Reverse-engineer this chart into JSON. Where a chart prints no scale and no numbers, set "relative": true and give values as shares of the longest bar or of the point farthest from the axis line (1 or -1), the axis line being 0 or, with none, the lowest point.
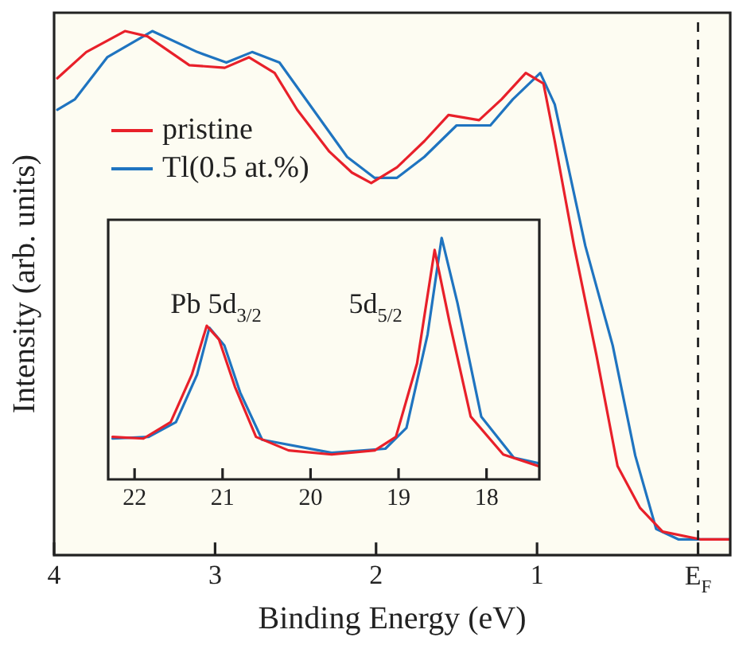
{
  "chart_data": [
    {
      "type": "line",
      "xlabel": "Binding Energy (eV)",
      "ylabel": "Intensity (arb. units)",
      "relative": true,
      "xlim": [
        4,
        -0.2
      ],
      "xticks": [
        4,
        3,
        2,
        1,
        {
          "value": 0,
          "label": "E$_{F}$"
        }
      ],
      "legend": "top left",
      "line_style": "solid",
      "marker": "none",
      "ref_lines": [
        {
          "axis": "x",
          "value": 0,
          "label": null,
          "line_style": "dashed",
          "color": "#222222"
        }
      ],
      "series": [
        {
          "name": "pristine",
          "color": "#e8202a",
          "x": [
            3.98,
            3.8,
            3.56,
            3.42,
            3.16,
            2.94,
            2.79,
            2.63,
            2.49,
            2.29,
            2.15,
            2.03,
            1.87,
            1.7,
            1.55,
            1.36,
            1.22,
            1.07,
            0.96,
            0.89,
            0.77,
            0.63,
            0.5,
            0.36,
            0.22,
            -0.02,
            -0.2
          ],
          "values": [
            0.91,
            0.96,
            1.0,
            0.99,
            0.935,
            0.93,
            0.95,
            0.92,
            0.85,
            0.77,
            0.73,
            0.71,
            0.74,
            0.79,
            0.84,
            0.83,
            0.87,
            0.92,
            0.9,
            0.79,
            0.59,
            0.38,
            0.17,
            0.09,
            0.045,
            0.03,
            0.03
          ]
        },
        {
          "name": "Tl(0.5 at.%)",
          "color": "#1f74c0",
          "x": [
            3.98,
            3.87,
            3.67,
            3.39,
            3.11,
            2.93,
            2.77,
            2.6,
            2.39,
            2.18,
            2.01,
            1.87,
            1.7,
            1.5,
            1.29,
            1.15,
            0.98,
            0.89,
            0.7,
            0.53,
            0.39,
            0.26,
            0.12,
            -0.02,
            -0.2
          ],
          "values": [
            0.85,
            0.87,
            0.95,
            1.0,
            0.96,
            0.94,
            0.96,
            0.94,
            0.85,
            0.76,
            0.72,
            0.72,
            0.76,
            0.82,
            0.82,
            0.87,
            0.92,
            0.86,
            0.59,
            0.4,
            0.19,
            0.05,
            0.03,
            0.03,
            0.03
          ]
        }
      ]
    },
    {
      "type": "line",
      "relative": true,
      "xlim": [
        22.3,
        17.4
      ],
      "xticks": [
        22,
        21,
        20,
        19,
        18
      ],
      "line_style": "solid",
      "marker": "none",
      "annotations": [
        "Pb 5d$_{3/2}$",
        "5d$_{5/2}$"
      ],
      "series": [
        {
          "color": "#e8202a",
          "x": [
            22.25,
            21.9,
            21.59,
            21.35,
            21.18,
            21.04,
            20.86,
            20.62,
            20.25,
            19.76,
            19.27,
            19.03,
            18.79,
            18.59,
            18.42,
            18.18,
            17.81,
            17.4
          ],
          "values": [
            0.176,
            0.169,
            0.237,
            0.433,
            0.636,
            0.579,
            0.384,
            0.176,
            0.12,
            0.103,
            0.12,
            0.176,
            0.48,
            0.95,
            0.65,
            0.26,
            0.103,
            0.054
          ]
        },
        {
          "color": "#1f74c0",
          "x": [
            22.25,
            21.84,
            21.53,
            21.29,
            21.15,
            20.98,
            20.8,
            20.55,
            19.76,
            19.15,
            18.91,
            18.67,
            18.51,
            18.33,
            18.06,
            17.69,
            17.4
          ],
          "values": [
            0.169,
            0.176,
            0.237,
            0.433,
            0.628,
            0.555,
            0.36,
            0.164,
            0.11,
            0.127,
            0.213,
            0.6,
            1.0,
            0.73,
            0.26,
            0.09,
            0.066
          ]
        }
      ]
    }
  ]
}
